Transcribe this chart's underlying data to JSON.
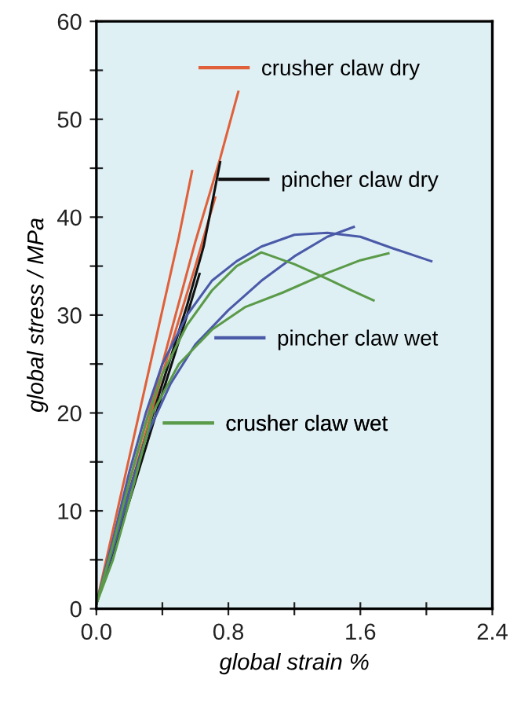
{
  "chart_data": {
    "type": "line",
    "xlabel": "global strain %",
    "ylabel": "global stress / MPa",
    "xlim": [
      0,
      2.4
    ],
    "ylim": [
      0,
      60
    ],
    "xticks": [
      {
        "value": 0,
        "label": "0.0"
      },
      {
        "value": 0.4,
        "label": null
      },
      {
        "value": 0.8,
        "label": "0.8"
      },
      {
        "value": 1.2,
        "label": null
      },
      {
        "value": 1.6,
        "label": "1.6"
      },
      {
        "value": 2.0,
        "label": null
      },
      {
        "value": 2.4,
        "label": "2.4"
      }
    ],
    "yticks": [
      0,
      {
        "value": 5,
        "label": null
      },
      10,
      {
        "value": 15,
        "label": null
      },
      20,
      {
        "value": 25,
        "label": null
      },
      30,
      {
        "value": 35,
        "label": null
      },
      40,
      {
        "value": 45,
        "label": null
      },
      50,
      {
        "value": 55,
        "label": null
      },
      60
    ],
    "grid": false,
    "legend": "right",
    "marker": "none",
    "line_style": "solid",
    "series": [
      {
        "name": "crusher claw dry",
        "color": "#e0603a",
        "x": [
          0,
          0.2,
          0.4,
          0.6,
          0.75,
          0.86
        ],
        "values": [
          0.5,
          13,
          25,
          37.5,
          46,
          52.8
        ]
      },
      {
        "color": "#e0603a",
        "x": [
          0,
          0.1,
          0.2,
          0.3,
          0.4,
          0.5,
          0.58
        ],
        "values": [
          0.5,
          8,
          15.5,
          23,
          30.5,
          38,
          44.7
        ]
      },
      {
        "color": "#e0603a",
        "x": [
          0,
          0.2,
          0.4,
          0.6,
          0.72
        ],
        "values": [
          0.5,
          12,
          24,
          35,
          42
        ]
      },
      {
        "name": "pincher claw dry",
        "color": "#111111",
        "x": [
          0,
          0.2,
          0.4,
          0.55,
          0.65,
          0.75
        ],
        "values": [
          0.5,
          12,
          23,
          31,
          37,
          45.6
        ]
      },
      {
        "color": "#111111",
        "x": [
          0,
          0.2,
          0.4,
          0.55,
          0.625
        ],
        "values": [
          0.5,
          11,
          22,
          30,
          34.2
        ]
      },
      {
        "name": "pincher claw wet",
        "color": "#4a5aa8",
        "x": [
          0,
          0.1,
          0.2,
          0.3,
          0.4,
          0.55,
          0.7,
          0.85,
          1.0,
          1.2,
          1.4,
          1.6,
          1.8,
          2.03
        ],
        "values": [
          0.5,
          7,
          14,
          20,
          25,
          30,
          33.5,
          35.5,
          37,
          38.2,
          38.4,
          38,
          36.8,
          35.5
        ]
      },
      {
        "color": "#4a5aa8",
        "x": [
          0,
          0.1,
          0.2,
          0.3,
          0.45,
          0.6,
          0.8,
          1.0,
          1.2,
          1.4,
          1.56
        ],
        "values": [
          0.5,
          6,
          12,
          17.5,
          23,
          27,
          30.5,
          33.5,
          36,
          38,
          39
        ]
      },
      {
        "name": "crusher claw wet",
        "color": "#5a9a48",
        "x": [
          0,
          0.1,
          0.2,
          0.3,
          0.4,
          0.55,
          0.7,
          0.85,
          1.0,
          1.2,
          1.4,
          1.55,
          1.68
        ],
        "values": [
          0.5,
          6.5,
          13,
          19,
          24,
          29,
          32.5,
          35,
          36.4,
          35.2,
          33.7,
          32.5,
          31.5
        ]
      },
      {
        "color": "#5a9a48",
        "x": [
          0,
          0.1,
          0.2,
          0.34,
          0.5,
          0.7,
          0.9,
          1.13,
          1.4,
          1.6,
          1.77
        ],
        "values": [
          0.5,
          5,
          11,
          20,
          25,
          28.5,
          30.8,
          32.3,
          34.3,
          35.6,
          36.3
        ]
      }
    ]
  }
}
